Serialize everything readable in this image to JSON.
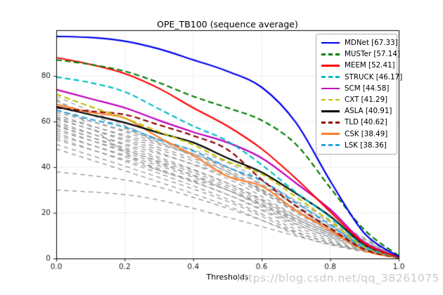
{
  "figure": {
    "title": "OPE_TB100 (sequence average)",
    "xlabel": "Thresholds",
    "watermark": "https://blog.csdn.net/qq_38261075"
  },
  "chart_data": {
    "type": "line",
    "title": "OPE_TB100 (sequence average)",
    "xlabel": "Thresholds",
    "ylabel": "",
    "xlim": [
      0,
      1
    ],
    "ylim": [
      0,
      100
    ],
    "xticks": [
      0,
      0.2,
      0.4,
      0.6,
      0.8,
      1.0
    ],
    "xtick_labels": [
      "0.0",
      "0.2",
      "0.4",
      "0.6",
      "0.8",
      "1.0"
    ],
    "yticks": [
      0,
      20,
      40,
      60,
      80
    ],
    "ytick_labels": [
      "0",
      "20",
      "40",
      "60",
      "80"
    ],
    "grid": true,
    "grid_style": "dotted",
    "legend_position": "upper right",
    "x": [
      0,
      0.1,
      0.2,
      0.3,
      0.4,
      0.5,
      0.6,
      0.7,
      0.8,
      0.9,
      1.0
    ],
    "series": [
      {
        "name": "MDNet",
        "auc": 67.33,
        "label": "MDNet [67.33]",
        "color": "#0000ee",
        "dashed": false,
        "values": [
          97.3,
          96.8,
          95.2,
          91.8,
          87.0,
          82.0,
          75.0,
          59.5,
          34.0,
          11.0,
          0.8
        ]
      },
      {
        "name": "MUSTer",
        "auc": 57.14,
        "label": "MUSTer [57.14]",
        "color": "#007f00",
        "dashed": true,
        "values": [
          87.0,
          85.0,
          82.0,
          77.0,
          71.0,
          66.0,
          60.5,
          50.0,
          31.0,
          12.5,
          1.2
        ]
      },
      {
        "name": "MEEM",
        "auc": 52.41,
        "label": "MEEM [52.41]",
        "color": "#ff0000",
        "dashed": false,
        "values": [
          88.0,
          85.0,
          81.0,
          74.5,
          66.0,
          58.0,
          48.0,
          35.0,
          20.5,
          6.5,
          0.5
        ]
      },
      {
        "name": "STRUCK",
        "auc": 46.17,
        "label": "STRUCK [46.17]",
        "color": "#00bfc4",
        "dashed": true,
        "values": [
          79.5,
          77.0,
          73.0,
          65.5,
          58.0,
          51.4,
          41.0,
          29.0,
          18.0,
          5.5,
          0.4
        ]
      },
      {
        "name": "SCM",
        "auc": 44.58,
        "label": "SCM [44.58]",
        "color": "#bf00bf",
        "dashed": false,
        "values": [
          74.0,
          70.0,
          66.0,
          60.5,
          55.4,
          50.8,
          44.0,
          33.0,
          21.5,
          7.0,
          0.6
        ]
      },
      {
        "name": "CXT",
        "auc": 41.29,
        "label": "CXT [41.29]",
        "color": "#bfbf00",
        "dashed": true,
        "values": [
          72.0,
          66.5,
          61.5,
          55.5,
          49.8,
          42.5,
          37.0,
          27.0,
          16.3,
          5.0,
          0.4
        ]
      },
      {
        "name": "ASLA",
        "auc": 40.91,
        "label": "ASLA [40.91]",
        "color": "#000000",
        "dashed": false,
        "values": [
          66.5,
          63.0,
          59.5,
          55.0,
          50.8,
          44.0,
          37.8,
          28.5,
          18.5,
          6.0,
          0.5
        ]
      },
      {
        "name": "TLD",
        "auc": 40.62,
        "label": "TLD [40.62]",
        "color": "#8b0000",
        "dashed": true,
        "values": [
          66.0,
          64.5,
          63.0,
          58.5,
          53.8,
          47.7,
          34.5,
          23.0,
          13.2,
          4.0,
          0.3
        ]
      },
      {
        "name": "CSK",
        "auc": 38.49,
        "label": "CSK [38.49]",
        "color": "#ff7f2a",
        "dashed": false,
        "values": [
          67.5,
          64.0,
          61.5,
          53.0,
          45.2,
          36.0,
          31.7,
          21.0,
          12.3,
          3.5,
          0.3
        ]
      },
      {
        "name": "LSK",
        "auc": 38.36,
        "label": "LSK [38.36]",
        "color": "#2aa3e0",
        "dashed": true,
        "values": [
          65.0,
          61.0,
          57.5,
          52.0,
          47.1,
          40.0,
          34.0,
          24.5,
          14.8,
          4.5,
          0.3
        ]
      }
    ],
    "unlabeled_trackers": {
      "color": "#8f8f8f",
      "dashed": true,
      "x": [
        0,
        0.25,
        0.5,
        0.75,
        1.0
      ],
      "values": [
        [
          71,
          55,
          39,
          17,
          0.4
        ],
        [
          70,
          42,
          30,
          14,
          0.4
        ],
        [
          69,
          54,
          38,
          16,
          0.4
        ],
        [
          65,
          53,
          40,
          19,
          0.5
        ],
        [
          64,
          54,
          42,
          21,
          1.0
        ],
        [
          63,
          51,
          38,
          17,
          0.4
        ],
        [
          62,
          52,
          40,
          20,
          0.8
        ],
        [
          61.5,
          49,
          35,
          15,
          0.3
        ],
        [
          61,
          50,
          37,
          18,
          0.5
        ],
        [
          60,
          47,
          33,
          14,
          0.3
        ],
        [
          59,
          48,
          36,
          17,
          0.6
        ],
        [
          58.5,
          45,
          30,
          12,
          0.2
        ],
        [
          58,
          46,
          33,
          15,
          0.4
        ],
        [
          57,
          44,
          31,
          13,
          0.3
        ],
        [
          56,
          45,
          32,
          14,
          0.4
        ],
        [
          55,
          42,
          28,
          11,
          0.2
        ],
        [
          54,
          43,
          30,
          13,
          0.3
        ],
        [
          53,
          40,
          26,
          10,
          0.2
        ],
        [
          52,
          41,
          28,
          12,
          0.3
        ],
        [
          50,
          38,
          25,
          9,
          0.2
        ],
        [
          48,
          36,
          23,
          8,
          0.2
        ],
        [
          38,
          33,
          22,
          9,
          0.3
        ],
        [
          30,
          27,
          18,
          8,
          0.2
        ]
      ]
    }
  }
}
